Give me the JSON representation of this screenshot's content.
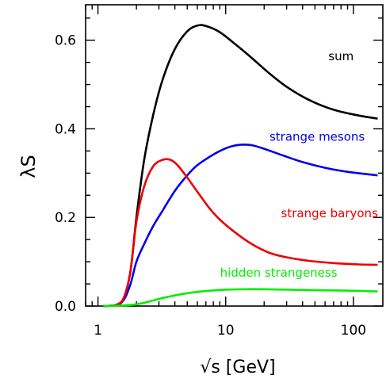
{
  "chart_data": {
    "type": "line",
    "xlabel": "√s  [GeV]",
    "ylabel": "λS",
    "x_scale": "log",
    "xlim": [
      0.8,
      170
    ],
    "ylim": [
      0,
      0.68
    ],
    "x_ticks": [
      {
        "value": 1,
        "label": "1"
      },
      {
        "value": 10,
        "label": "10"
      },
      {
        "value": 100,
        "label": "100"
      }
    ],
    "y_ticks": [
      {
        "value": 0.0,
        "label": "0.0"
      },
      {
        "value": 0.2,
        "label": "0.2"
      },
      {
        "value": 0.4,
        "label": "0.4"
      },
      {
        "value": 0.6,
        "label": "0.6"
      }
    ],
    "grid": false,
    "legend": "inline labels",
    "series": [
      {
        "name": "sum",
        "color": "#000000",
        "label_at": [
          80,
          0.555
        ],
        "points": [
          [
            1.1,
            0
          ],
          [
            1.4,
            0.003
          ],
          [
            1.6,
            0.02
          ],
          [
            1.8,
            0.08
          ],
          [
            2.0,
            0.2
          ],
          [
            2.3,
            0.33
          ],
          [
            2.7,
            0.43
          ],
          [
            3.2,
            0.51
          ],
          [
            4.0,
            0.58
          ],
          [
            5.0,
            0.62
          ],
          [
            6.0,
            0.633
          ],
          [
            7.0,
            0.632
          ],
          [
            9.0,
            0.618
          ],
          [
            12,
            0.59
          ],
          [
            16,
            0.56
          ],
          [
            22,
            0.525
          ],
          [
            30,
            0.495
          ],
          [
            45,
            0.465
          ],
          [
            70,
            0.443
          ],
          [
            110,
            0.43
          ],
          [
            155,
            0.423
          ]
        ]
      },
      {
        "name": "strange mesons",
        "color": "#0000ee",
        "label_at": [
          52,
          0.373
        ],
        "points": [
          [
            1.1,
            0
          ],
          [
            1.4,
            0.002
          ],
          [
            1.6,
            0.015
          ],
          [
            1.8,
            0.05
          ],
          [
            2.0,
            0.1
          ],
          [
            2.3,
            0.14
          ],
          [
            2.7,
            0.18
          ],
          [
            3.2,
            0.215
          ],
          [
            4.0,
            0.26
          ],
          [
            5.0,
            0.295
          ],
          [
            6.0,
            0.318
          ],
          [
            7.5,
            0.337
          ],
          [
            9.0,
            0.35
          ],
          [
            11,
            0.36
          ],
          [
            13,
            0.364
          ],
          [
            16,
            0.363
          ],
          [
            20,
            0.355
          ],
          [
            28,
            0.34
          ],
          [
            40,
            0.325
          ],
          [
            60,
            0.312
          ],
          [
            90,
            0.303
          ],
          [
            155,
            0.295
          ]
        ]
      },
      {
        "name": "strange baryons",
        "color": "#ee0000",
        "label_at": [
          65,
          0.2
        ],
        "points": [
          [
            1.1,
            0
          ],
          [
            1.4,
            0.003
          ],
          [
            1.6,
            0.02
          ],
          [
            1.8,
            0.08
          ],
          [
            2.0,
            0.19
          ],
          [
            2.3,
            0.27
          ],
          [
            2.7,
            0.315
          ],
          [
            3.2,
            0.33
          ],
          [
            3.7,
            0.33
          ],
          [
            4.2,
            0.318
          ],
          [
            5.0,
            0.29
          ],
          [
            6.0,
            0.258
          ],
          [
            7.5,
            0.22
          ],
          [
            9.0,
            0.195
          ],
          [
            12,
            0.165
          ],
          [
            16,
            0.14
          ],
          [
            22,
            0.12
          ],
          [
            30,
            0.11
          ],
          [
            45,
            0.102
          ],
          [
            70,
            0.097
          ],
          [
            110,
            0.094
          ],
          [
            155,
            0.093
          ]
        ]
      },
      {
        "name": "hidden strangeness",
        "color": "#00ee00",
        "label_at": [
          26,
          0.066
        ],
        "points": [
          [
            1.1,
            0
          ],
          [
            1.5,
            0.001
          ],
          [
            2.0,
            0.004
          ],
          [
            2.5,
            0.01
          ],
          [
            3.2,
            0.018
          ],
          [
            4.0,
            0.024
          ],
          [
            5.0,
            0.029
          ],
          [
            7.0,
            0.034
          ],
          [
            10,
            0.037
          ],
          [
            14,
            0.038
          ],
          [
            20,
            0.038
          ],
          [
            30,
            0.037
          ],
          [
            50,
            0.036
          ],
          [
            80,
            0.035
          ],
          [
            120,
            0.034
          ],
          [
            155,
            0.033
          ]
        ]
      }
    ]
  }
}
